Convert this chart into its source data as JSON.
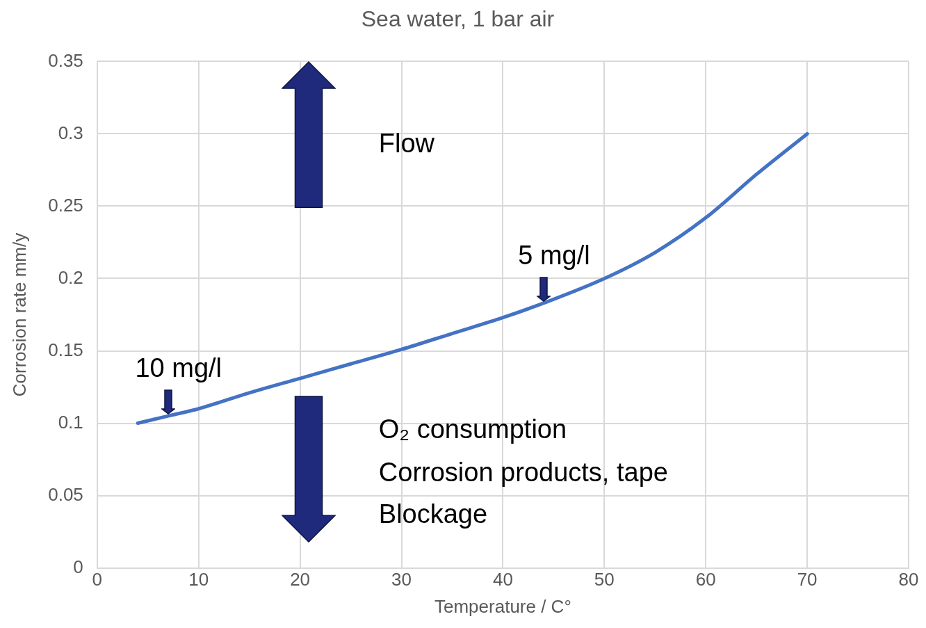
{
  "chart_data": {
    "type": "line",
    "title": "Sea water, 1 bar air",
    "xlabel": "Temperature / C°",
    "ylabel": "Corrosion rate mm/y",
    "x": [
      4,
      7,
      10,
      15,
      20,
      25,
      30,
      35,
      40,
      44,
      50,
      55,
      60,
      65,
      70
    ],
    "series": [
      {
        "color": "#4472c4",
        "values": [
          0.1,
          0.105,
          0.11,
          0.121,
          0.131,
          0.141,
          0.151,
          0.162,
          0.173,
          0.183,
          0.2,
          0.218,
          0.242,
          0.272,
          0.3
        ]
      }
    ],
    "xlim": [
      0,
      80
    ],
    "xticks": [
      0,
      10,
      20,
      30,
      40,
      50,
      60,
      70,
      80
    ],
    "ylim": [
      0,
      0.35
    ],
    "yticks": [
      0,
      0.05,
      0.1,
      0.15,
      0.2,
      0.25,
      0.3,
      0.35
    ],
    "grid": true,
    "legend": false,
    "marker": "none",
    "line_style": "solid",
    "annotations": [
      {
        "text": "10 mg/l",
        "x": 7,
        "y": 0.105
      },
      {
        "text": "5 mg/l",
        "x": 44,
        "y": 0.183
      },
      "Flow",
      "O₂ consumption",
      "Corrosion products, tape",
      "Blockage"
    ]
  }
}
